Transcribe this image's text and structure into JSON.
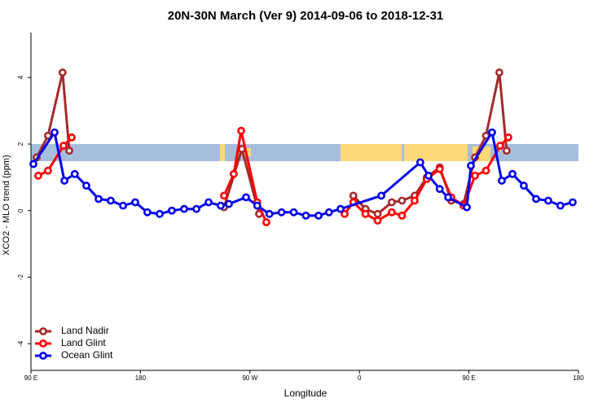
{
  "chart_data": {
    "type": "line",
    "title": "20N-30N March (Ver 9)   2014-09-06 to 2018-12-31",
    "x_label": "Longitude",
    "y_label": "XCO2 - MLO trend (ppm)",
    "xlim": [
      90,
      540
    ],
    "ylim": [
      -4.8,
      5.35
    ],
    "xticks": [
      {
        "value": 90,
        "label": "90 E"
      },
      180,
      {
        "value": 270,
        "label": "90 W"
      },
      {
        "value": 360,
        "label": "0"
      },
      {
        "value": 450,
        "label": "90 E"
      },
      {
        "value": 540,
        "label": "180"
      }
    ],
    "yticks": [
      -4,
      -2,
      0,
      2,
      4
    ],
    "legend": "bottom-left",
    "series": [
      {
        "name": "Land Nadir",
        "color": "#a52a2a",
        "x": [
          94.7,
          104,
          116,
          121.5,
          185,
          248.7,
          263.4,
          277.5,
          316,
          355,
          365,
          375,
          386.6,
          395,
          405.4,
          415.4,
          426,
          435.5,
          445.6,
          455,
          464,
          475,
          481
        ],
        "values": [
          1.6,
          2.25,
          4.15,
          1.8,
          null,
          0.1,
          1.85,
          -0.1,
          null,
          0.45,
          0.05,
          -0.1,
          0.25,
          0.3,
          0.45,
          1.0,
          1.3,
          0.3,
          0.2,
          1.6,
          2.25,
          4.15,
          1.8
        ]
      },
      {
        "name": "Land Glint",
        "color": "#ff0000",
        "x": [
          96,
          104,
          116.8,
          123.5,
          185,
          248.7,
          256.7,
          262.8,
          276,
          283.5,
          316,
          347.8,
          355,
          365,
          375,
          386.6,
          395,
          405.4,
          415.4,
          426,
          435.5,
          445.6,
          455,
          464,
          475.7,
          482.4
        ],
        "values": [
          1.05,
          1.2,
          1.95,
          2.2,
          null,
          0.45,
          1.1,
          2.4,
          0.25,
          -0.35,
          null,
          -0.1,
          0.25,
          -0.1,
          -0.3,
          -0.05,
          -0.15,
          0.3,
          0.95,
          1.25,
          0.4,
          0.15,
          1.05,
          1.2,
          1.95,
          2.2
        ]
      },
      {
        "name": "Ocean Glint",
        "color": "#0000ee",
        "x": [
          92,
          109.4,
          117.5,
          126,
          135.5,
          145.6,
          155.6,
          165.7,
          175.7,
          185.7,
          195.8,
          205.8,
          215.9,
          226,
          236,
          246,
          252.7,
          266.8,
          276,
          286,
          296,
          306,
          316,
          326.4,
          335,
          344.5,
          378,
          410,
          416.8,
          426,
          432.9,
          448.3,
          451.6,
          469,
          477,
          485.8,
          495.1,
          505.2,
          515.2,
          525.2,
          535.3
        ],
        "values": [
          1.4,
          2.35,
          0.9,
          1.1,
          0.75,
          0.35,
          0.3,
          0.15,
          0.25,
          -0.05,
          -0.1,
          0,
          0.05,
          0.05,
          0.25,
          0.15,
          0.2,
          0.4,
          0.15,
          -0.1,
          -0.05,
          -0.05,
          -0.15,
          -0.15,
          -0.05,
          0.05,
          0.45,
          1.45,
          1.05,
          0.65,
          0.4,
          0.1,
          1.35,
          2.35,
          0.9,
          1.1,
          0.75,
          0.35,
          0.3,
          0.15,
          0.25
        ]
      }
    ]
  }
}
